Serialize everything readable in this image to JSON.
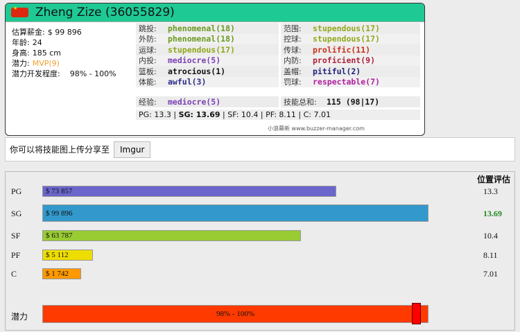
{
  "player": {
    "name": "Zheng Zize (36055829)",
    "flag": "china-flag-icon"
  },
  "info": [
    {
      "label": "估算薪金:",
      "value": "$ 99 896"
    },
    {
      "label": "年龄:",
      "value": "24"
    },
    {
      "label": "身高:",
      "value": "185 cm"
    },
    {
      "label": "潜力:",
      "value": "MVP(9)",
      "color": "#f0a030"
    },
    {
      "label": "潜力开发程度:",
      "value": "98% - 100%"
    }
  ],
  "skills_left": [
    {
      "label": "跳投:",
      "value": "phenomenal(18)",
      "color": "#6a9a1f"
    },
    {
      "label": "外防:",
      "value": "phenomenal(18)",
      "color": "#6a9a1f"
    },
    {
      "label": "运球:",
      "value": "stupendous(17)",
      "color": "#8fa81a"
    },
    {
      "label": "内投:",
      "value": "mediocre(5)",
      "color": "#7b3fb5"
    },
    {
      "label": "篮板:",
      "value": "atrocious(1)",
      "color": "#111111"
    },
    {
      "label": "体能:",
      "value": "awful(3)",
      "color": "#2a2a8a"
    }
  ],
  "skills_right": [
    {
      "label": "范围:",
      "value": "stupendous(17)",
      "color": "#8fa81a"
    },
    {
      "label": "控球:",
      "value": "stupendous(17)",
      "color": "#8fa81a"
    },
    {
      "label": "传球:",
      "value": "prolific(11)",
      "color": "#c8301a"
    },
    {
      "label": "内防:",
      "value": "proficient(9)",
      "color": "#b0203a"
    },
    {
      "label": "盖帽:",
      "value": "pitiful(2)",
      "color": "#1f1f7a"
    },
    {
      "label": "罚球:",
      "value": "respectable(7)",
      "color": "#b020a0"
    }
  ],
  "experience": {
    "label": "经验:",
    "value": "mediocre(5)",
    "color": "#7b3fb5"
  },
  "total": {
    "label": "技能总和:",
    "value": "115 (98|17)"
  },
  "positions_line": {
    "pg": "PG: 13.3 | ",
    "sg": "SG: 13.69",
    "rest": " | SF: 10.4 | PF: 8.11 | C: 7.01"
  },
  "credit": "小浪幕新 www.buzzer-manager.com",
  "share": {
    "text": "你可以将技能图上传分享至",
    "button": "Imgur"
  },
  "chart_data": {
    "type": "bar",
    "header": "位置评估",
    "categories": [
      "PG",
      "SG",
      "SF",
      "PF",
      "C"
    ],
    "values": [
      73857,
      99896,
      63787,
      5112,
      1742
    ],
    "value_labels": [
      "$ 73 857",
      "$ 99 896",
      "$ 63 787",
      "$ 5 112",
      "$ 1 742"
    ],
    "ratings": [
      "13.3",
      "13.69",
      "10.4",
      "8.11",
      "7.01"
    ],
    "colors": [
      "#6a66cc",
      "#3399cc",
      "#99cc33",
      "#eedd00",
      "#ff9900"
    ],
    "best_color": "#228822",
    "potential": {
      "label": "潜力",
      "text": "98% - 100%",
      "min": 98,
      "max": 100,
      "color": "#ff3a00",
      "marker_color": "#ff0000"
    }
  }
}
